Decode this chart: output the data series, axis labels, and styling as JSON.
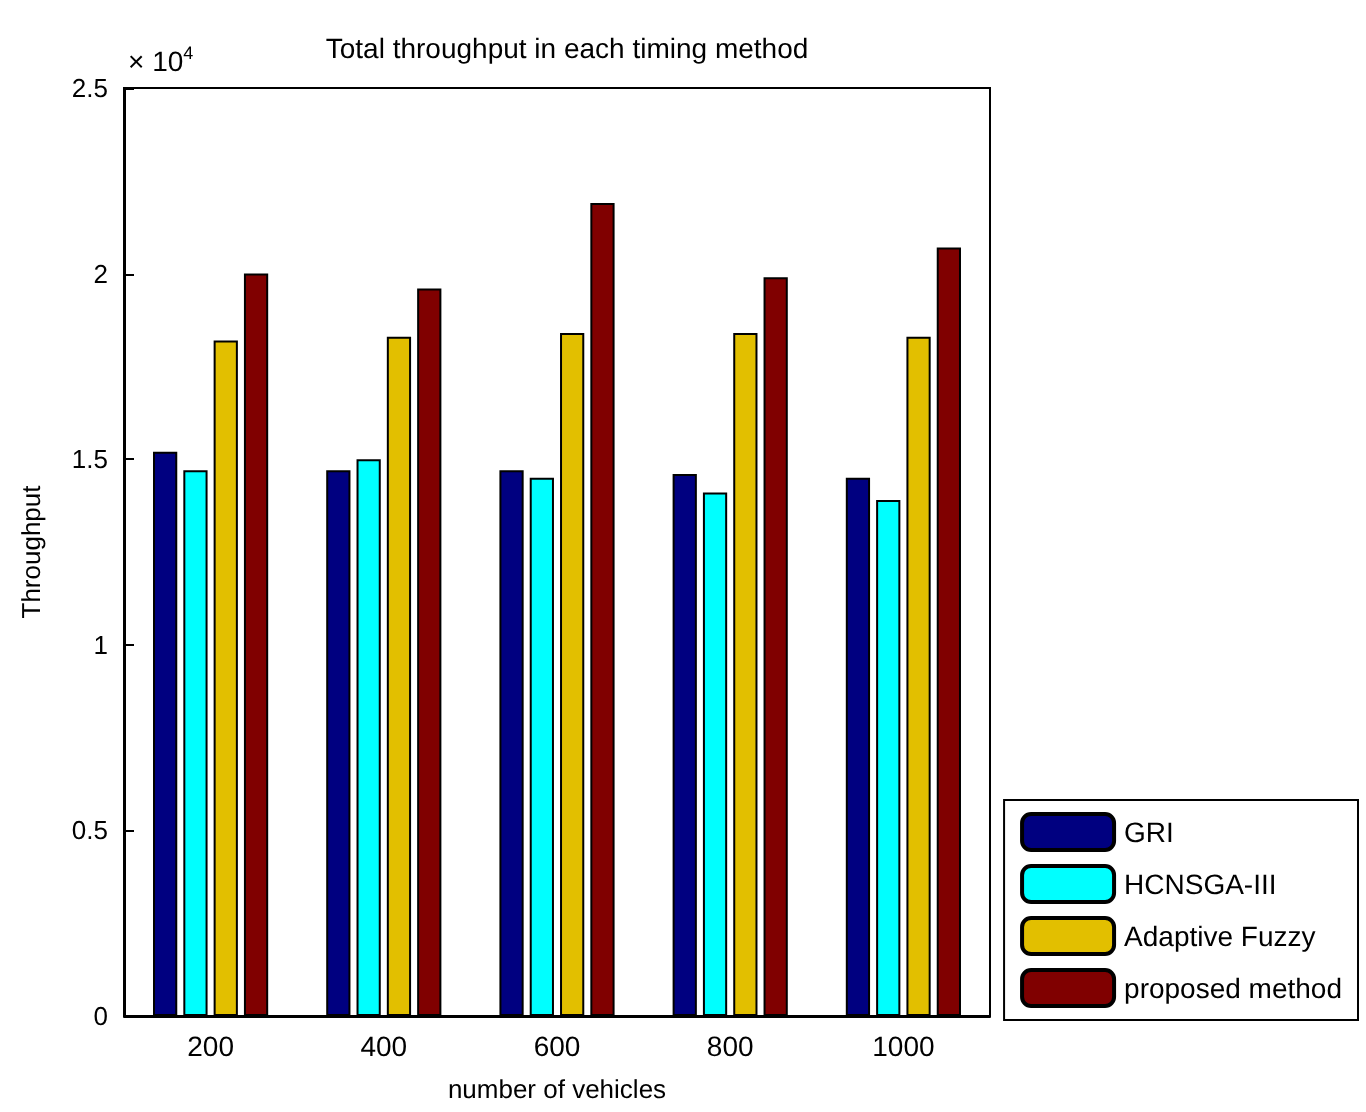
{
  "chart_data": {
    "type": "bar",
    "title": "Total throughput in each timing method",
    "xlabel": "number of vehicles",
    "ylabel": "Throughput",
    "annotations": [
      "× 10$^{4}$"
    ],
    "categories": [
      "200",
      "400",
      "600",
      "800",
      "1000"
    ],
    "series": [
      {
        "name": "GRI",
        "color": "#000080",
        "values": [
          1.52,
          1.47,
          1.47,
          1.46,
          1.45
        ]
      },
      {
        "name": "HCNSGA-III",
        "color": "#00ffff",
        "values": [
          1.47,
          1.5,
          1.45,
          1.41,
          1.39
        ]
      },
      {
        "name": "Adaptive Fuzzy",
        "color": "#e2bf00",
        "values": [
          1.82,
          1.83,
          1.84,
          1.84,
          1.83
        ]
      },
      {
        "name": "proposed method",
        "color": "#800000",
        "values": [
          2.0,
          1.96,
          2.19,
          1.99,
          2.07
        ]
      }
    ],
    "ylim": [
      0,
      2.5
    ],
    "yticks": [
      0,
      0.5,
      1,
      1.5,
      2,
      2.5
    ],
    "grid": false,
    "legend": "bottom right"
  }
}
